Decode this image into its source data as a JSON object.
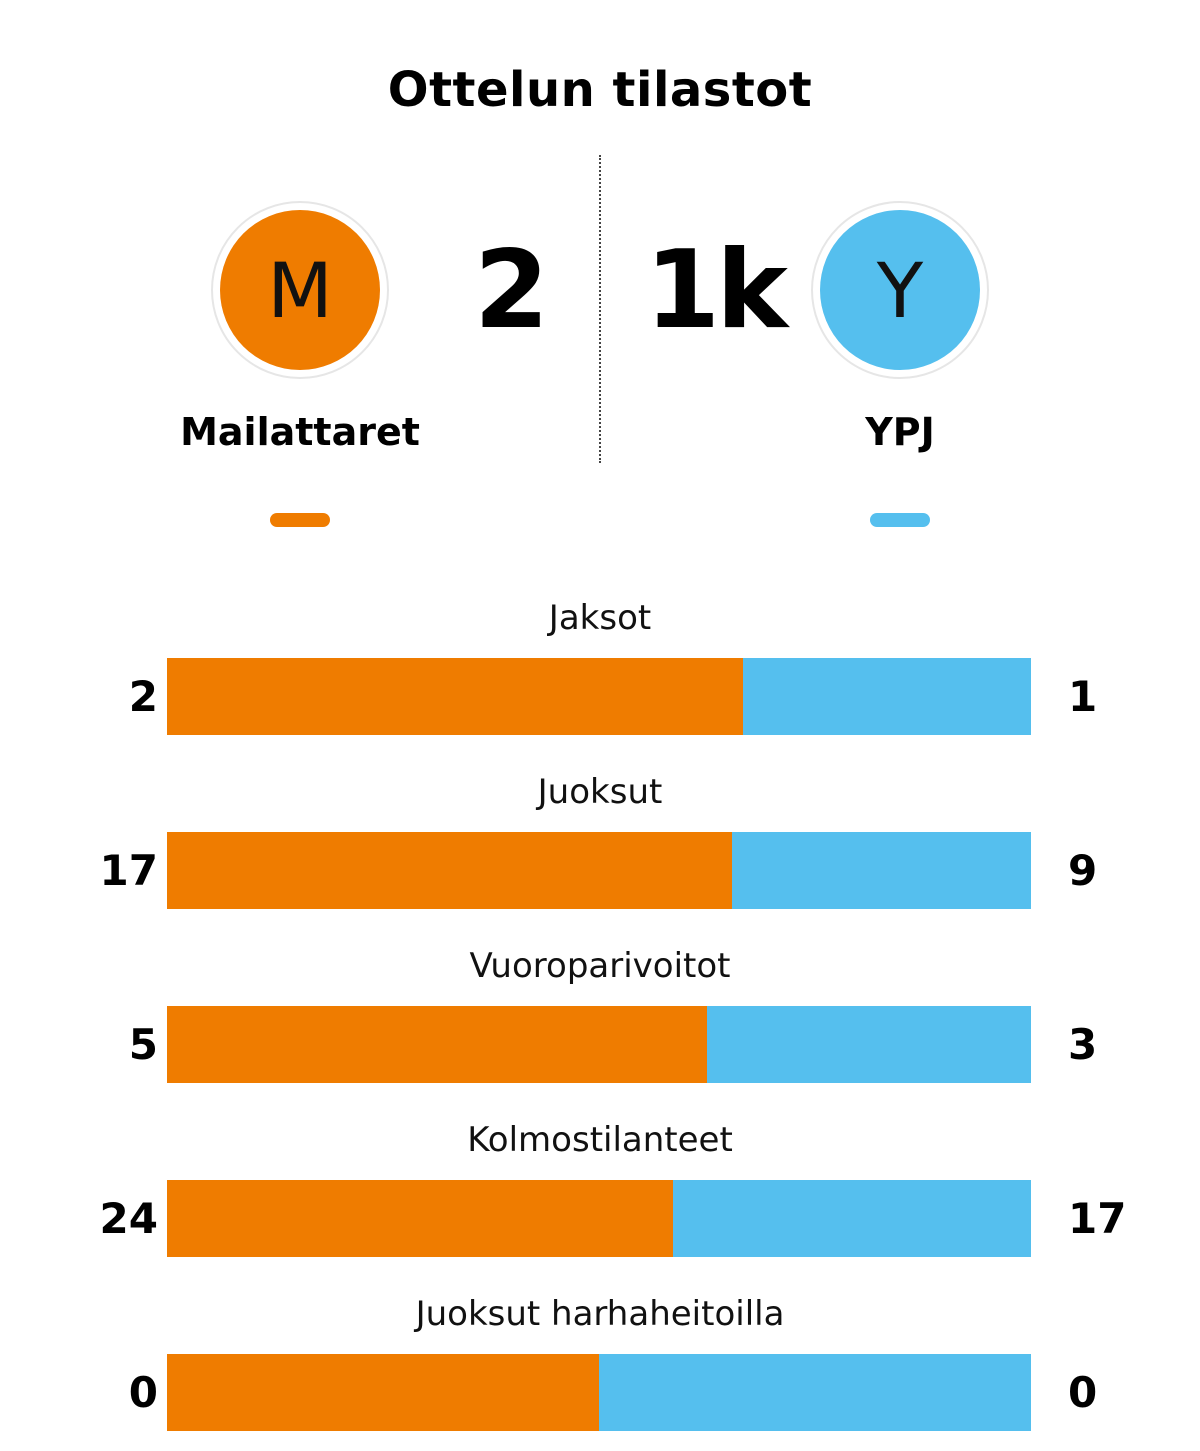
{
  "header": {
    "title": "Ottelun tilastot"
  },
  "colors": {
    "home": "#ef7c00",
    "away": "#55bfee"
  },
  "teams": {
    "home": {
      "initial": "M",
      "name": "Mailattaret",
      "score": "2"
    },
    "away": {
      "initial": "Y",
      "name": "YPJ",
      "score": "1k"
    }
  },
  "chart_data": {
    "type": "bar",
    "orientation": "horizontal-stacked-proportion",
    "categories": [
      "Jaksot",
      "Juoksut",
      "Vuoroparivoitot",
      "Kolmostilanteet",
      "Juoksut harhaheitoilla"
    ],
    "series": [
      {
        "name": "Mailattaret",
        "values": [
          2,
          17,
          5,
          24,
          0
        ]
      },
      {
        "name": "YPJ",
        "values": [
          1,
          9,
          3,
          17,
          0
        ]
      }
    ]
  }
}
